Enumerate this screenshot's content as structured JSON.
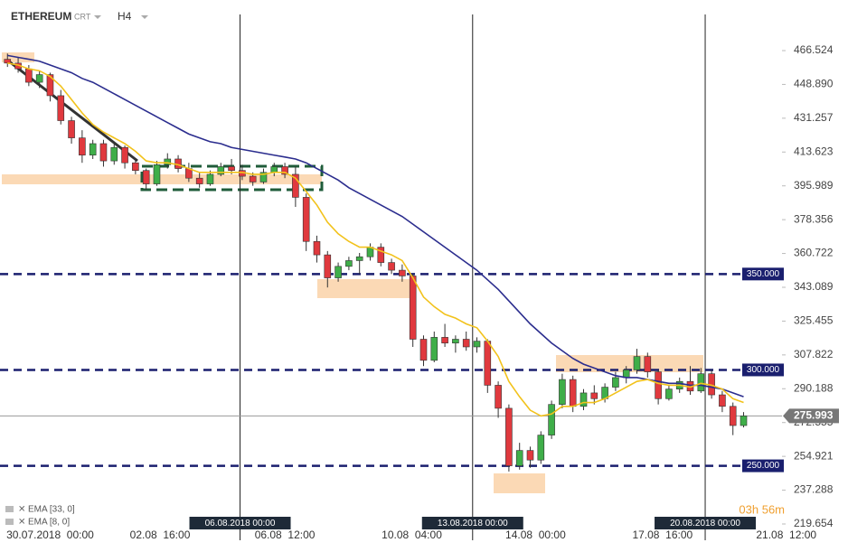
{
  "chart_data": {
    "type": "candlestick",
    "header": {
      "symbol": "ETHEREUM",
      "chart_style": "CRT",
      "timeframe": "H4"
    },
    "candles": [
      [
        462,
        465,
        458,
        460
      ],
      [
        460,
        463,
        455,
        457
      ],
      [
        457,
        459,
        448,
        450
      ],
      [
        450,
        456,
        447,
        454
      ],
      [
        454,
        455,
        440,
        443
      ],
      [
        443,
        446,
        428,
        430
      ],
      [
        430,
        432,
        418,
        421
      ],
      [
        421,
        425,
        408,
        412
      ],
      [
        412,
        420,
        410,
        418
      ],
      [
        418,
        420,
        406,
        409
      ],
      [
        409,
        418,
        407,
        416
      ],
      [
        416,
        417,
        405,
        408
      ],
      [
        408,
        410,
        402,
        404
      ],
      [
        404,
        405,
        394,
        397
      ],
      [
        397,
        409,
        396,
        407
      ],
      [
        407,
        413,
        405,
        410
      ],
      [
        410,
        412,
        403,
        405
      ],
      [
        405,
        408,
        398,
        400
      ],
      [
        400,
        403,
        395,
        397
      ],
      [
        397,
        404,
        396,
        402
      ],
      [
        402,
        408,
        401,
        406
      ],
      [
        406,
        410,
        402,
        404
      ],
      [
        404,
        407,
        399,
        401
      ],
      [
        401,
        403,
        396,
        398
      ],
      [
        398,
        405,
        397,
        403
      ],
      [
        403,
        408,
        401,
        406
      ],
      [
        406,
        408,
        400,
        402
      ],
      [
        402,
        406,
        385,
        390
      ],
      [
        390,
        392,
        362,
        367
      ],
      [
        367,
        370,
        356,
        360
      ],
      [
        360,
        362,
        343,
        348
      ],
      [
        348,
        356,
        346,
        354
      ],
      [
        354,
        359,
        352,
        357
      ],
      [
        357,
        361,
        350,
        359
      ],
      [
        359,
        366,
        357,
        364
      ],
      [
        364,
        366,
        354,
        356
      ],
      [
        356,
        358,
        350,
        352
      ],
      [
        352,
        355,
        346,
        349
      ],
      [
        349,
        350,
        312,
        316
      ],
      [
        316,
        318,
        302,
        305
      ],
      [
        305,
        320,
        304,
        317
      ],
      [
        317,
        324,
        312,
        314
      ],
      [
        314,
        318,
        309,
        316
      ],
      [
        316,
        320,
        310,
        312
      ],
      [
        312,
        317,
        309,
        315
      ],
      [
        315,
        316,
        288,
        292
      ],
      [
        292,
        294,
        275,
        280
      ],
      [
        280,
        282,
        247,
        250
      ],
      [
        250,
        262,
        248,
        258
      ],
      [
        258,
        260,
        249,
        253
      ],
      [
        253,
        268,
        251,
        266
      ],
      [
        266,
        284,
        264,
        282
      ],
      [
        282,
        298,
        280,
        295
      ],
      [
        295,
        297,
        278,
        281
      ],
      [
        281,
        290,
        279,
        288
      ],
      [
        288,
        292,
        282,
        285
      ],
      [
        285,
        293,
        283,
        291
      ],
      [
        291,
        299,
        289,
        296
      ],
      [
        296,
        302,
        293,
        300
      ],
      [
        300,
        311,
        298,
        307
      ],
      [
        307,
        309,
        296,
        299
      ],
      [
        299,
        300,
        282,
        285
      ],
      [
        285,
        292,
        284,
        290
      ],
      [
        290,
        296,
        288,
        294
      ],
      [
        294,
        302,
        287,
        289
      ],
      [
        289,
        301,
        288,
        298
      ],
      [
        298,
        300,
        285,
        287
      ],
      [
        287,
        289,
        278,
        281
      ],
      [
        281,
        283,
        266,
        271
      ],
      [
        271,
        278,
        270,
        276
      ]
    ],
    "up_color": "#3fae49",
    "down_color": "#e0393e",
    "series": [
      {
        "name": "EMA [33, 0]",
        "color": "#2b2d8e",
        "values": [
          464,
          463,
          462,
          461,
          459,
          457,
          455,
          452,
          450,
          447,
          444,
          441,
          438,
          435,
          432,
          429,
          426,
          423,
          421,
          419,
          418,
          416,
          415,
          414,
          413,
          412,
          411,
          410,
          408,
          405,
          402,
          399,
          395,
          392,
          389,
          386,
          383,
          380,
          376,
          372,
          368,
          364,
          360,
          356,
          352,
          347,
          342,
          336,
          330,
          324,
          319,
          314,
          310,
          306,
          303,
          301,
          299,
          297,
          296,
          296,
          295,
          294,
          293,
          293,
          292,
          292,
          291,
          290,
          288,
          286
        ]
      },
      {
        "name": "EMA [8, 0]",
        "color": "#f2c21b",
        "values": [
          460,
          459,
          457,
          456,
          453,
          448,
          441,
          434,
          428,
          424,
          421,
          418,
          414,
          409,
          408,
          408,
          407,
          405,
          403,
          403,
          403,
          403,
          403,
          402,
          402,
          403,
          403,
          400,
          393,
          386,
          377,
          371,
          367,
          364,
          364,
          362,
          360,
          357,
          348,
          338,
          333,
          329,
          327,
          324,
          322,
          315,
          307,
          294,
          286,
          279,
          276,
          277,
          281,
          281,
          283,
          283,
          285,
          288,
          291,
          294,
          295,
          293,
          292,
          292,
          291,
          293,
          292,
          290,
          285,
          283
        ]
      }
    ],
    "ylim": [
      211.17,
      474.06
    ],
    "yticks": [
      466.524,
      {
        "value": 448.89,
        "label": "448.890"
      },
      431.257,
      413.623,
      395.989,
      378.356,
      360.722,
      343.089,
      325.455,
      307.822,
      290.188,
      272.555,
      254.921,
      237.288,
      219.654
    ],
    "xlim": [
      -0.7,
      72.6
    ],
    "xticks": [
      {
        "value": 4,
        "label": "30.07.2018  00:00"
      },
      {
        "value": 14.3,
        "label": "02.08  16:00"
      },
      {
        "value": 26,
        "label": "06.08  12:00"
      },
      {
        "value": 37.9,
        "label": "10.08  04:00"
      },
      {
        "value": 49.5,
        "label": "14.08  00:00"
      },
      {
        "value": 61.4,
        "label": "17.08  16:00"
      },
      {
        "value": 73,
        "label": "21.08  12:00"
      }
    ],
    "separators": [
      {
        "value": 21.8,
        "label": "06.08.2018 00:00"
      },
      {
        "value": 43.6,
        "label": "13.08.2018 00:00"
      },
      {
        "value": 65.4,
        "label": "20.08.2018 00:00"
      }
    ],
    "levels": [
      {
        "value": 350,
        "label": "350.000"
      },
      {
        "value": 300,
        "label": "300.000"
      },
      {
        "value": 250,
        "label": "250.000"
      }
    ],
    "level_color": "#1a1f6e",
    "last_price": {
      "value": 275.993,
      "label": "275.993"
    },
    "countdown": "03h 56m"
  }
}
